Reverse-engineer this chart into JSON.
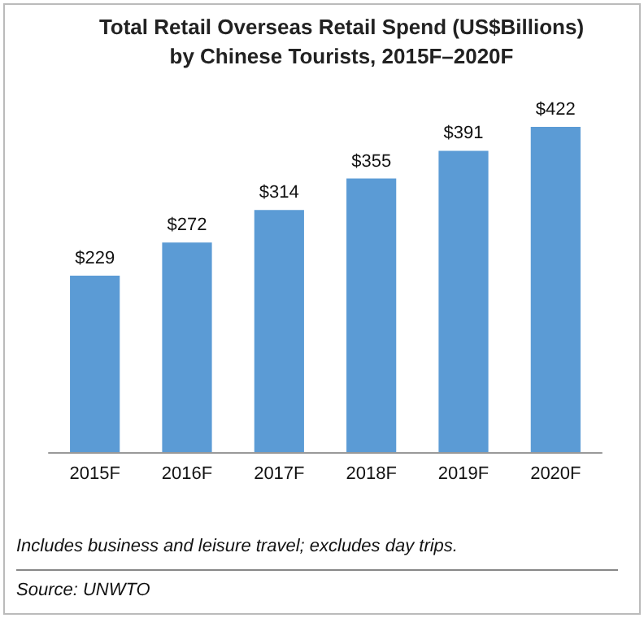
{
  "chart_data": {
    "type": "bar",
    "title": "Total Retail Overseas Retail Spend (US$Billions) by Chinese Tourists, 2015F–2020F",
    "categories": [
      "2015F",
      "2016F",
      "2017F",
      "2018F",
      "2019F",
      "2020F"
    ],
    "values": [
      229,
      272,
      314,
      355,
      391,
      422
    ],
    "value_labels": [
      "$229",
      "$272",
      "$314",
      "$355",
      "$391",
      "$422"
    ],
    "color": "#5b9bd5",
    "annotations": [
      "Includes business and leisure travel; excludes day trips.",
      "Source: UNWTO"
    ]
  }
}
